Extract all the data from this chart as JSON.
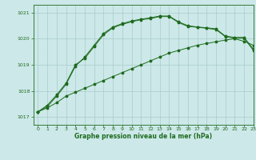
{
  "title": "Graphe pression niveau de la mer (hPa)",
  "bg_color": "#cce8e8",
  "grid_color": "#aacccc",
  "line_color": "#1e6b1e",
  "xlim": [
    -0.5,
    23
  ],
  "ylim": [
    1016.7,
    1021.3
  ],
  "yticks": [
    1017,
    1018,
    1019,
    1020,
    1021
  ],
  "xticks": [
    0,
    1,
    2,
    3,
    4,
    5,
    6,
    7,
    8,
    9,
    10,
    11,
    12,
    13,
    14,
    15,
    16,
    17,
    18,
    19,
    20,
    21,
    22,
    23
  ],
  "line1_x": [
    0,
    1,
    2,
    3,
    4,
    5,
    6,
    7,
    8,
    9,
    10,
    11,
    12,
    13,
    14,
    15,
    16,
    17,
    18,
    19,
    20,
    21,
    22,
    23
  ],
  "line1_y": [
    1017.2,
    1017.35,
    1017.55,
    1017.8,
    1017.95,
    1018.1,
    1018.25,
    1018.4,
    1018.55,
    1018.7,
    1018.85,
    1019.0,
    1019.15,
    1019.3,
    1019.45,
    1019.55,
    1019.65,
    1019.75,
    1019.82,
    1019.88,
    1019.95,
    1020.0,
    1019.9,
    1019.75
  ],
  "line2_x": [
    0,
    1,
    2,
    3,
    4,
    5,
    6,
    7,
    8,
    9,
    10,
    11,
    12,
    13,
    14,
    15,
    16,
    17,
    18,
    19,
    20,
    21,
    22,
    23
  ],
  "line2_y": [
    1017.2,
    1017.4,
    1017.8,
    1018.25,
    1018.95,
    1019.3,
    1019.75,
    1020.2,
    1020.45,
    1020.58,
    1020.68,
    1020.75,
    1020.8,
    1020.87,
    1020.87,
    1020.65,
    1020.5,
    1020.45,
    1020.42,
    1020.38,
    1020.1,
    1020.05,
    1020.05,
    1019.6
  ],
  "line3_x": [
    0,
    1,
    2,
    3,
    4,
    5,
    6,
    7,
    8,
    9,
    10,
    11,
    12,
    13,
    14,
    15,
    16,
    17,
    18,
    19,
    20,
    21,
    22,
    23
  ],
  "line3_y": [
    1017.2,
    1017.45,
    1017.85,
    1018.3,
    1019.0,
    1019.25,
    1019.7,
    1020.15,
    1020.42,
    1020.55,
    1020.65,
    1020.73,
    1020.77,
    1020.85,
    1020.85,
    1020.62,
    1020.47,
    1020.44,
    1020.4,
    1020.35,
    1020.08,
    1020.02,
    1020.02,
    1019.55
  ]
}
